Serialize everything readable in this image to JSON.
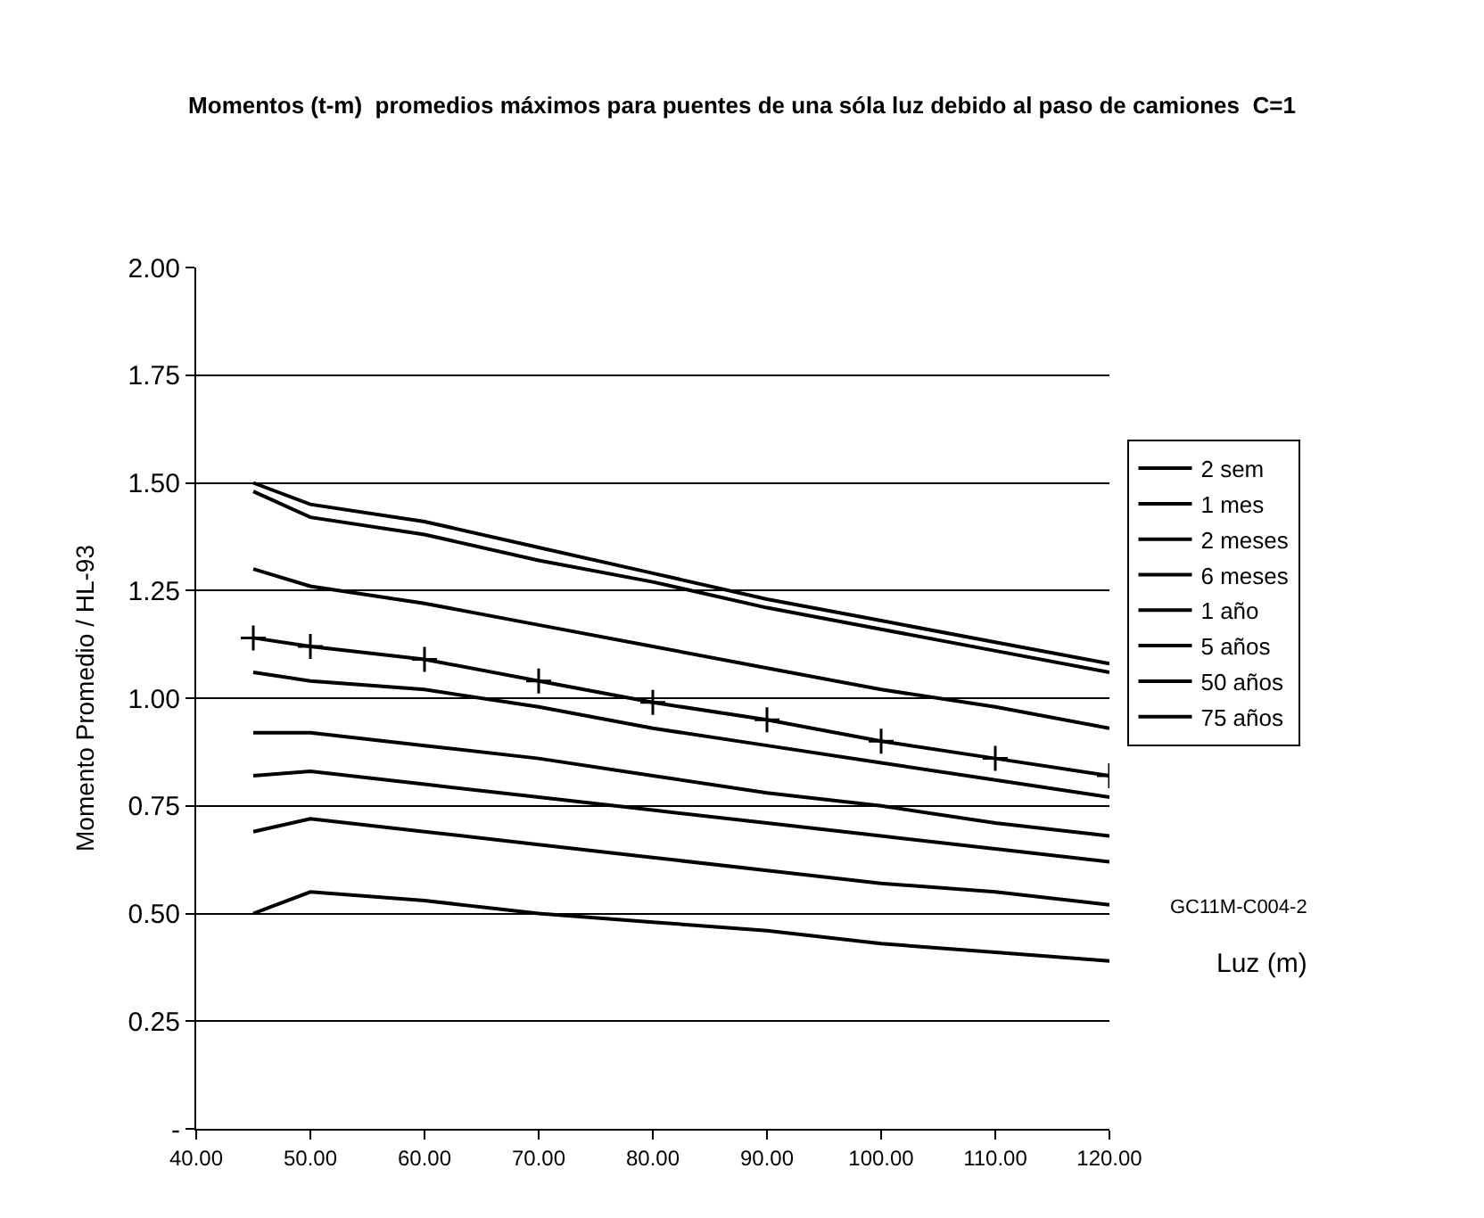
{
  "chart_data": {
    "type": "line",
    "title": "Momentos (t-m)  promedios máximos para puentes de una sóla luz debido al paso de camiones  C=1",
    "xlabel": "Luz (m)",
    "ylabel": "Momento Promedio / HL-93",
    "annotations": [
      "GC11M-C004-2"
    ],
    "x": [
      45,
      50,
      60,
      70,
      80,
      90,
      100,
      110,
      120
    ],
    "series": [
      {
        "name": "2 sem",
        "color": "#000000",
        "values": [
          0.5,
          0.55,
          0.53,
          0.5,
          0.48,
          0.46,
          0.43,
          0.41,
          0.39
        ]
      },
      {
        "name": "1 mes",
        "color": "#000000",
        "values": [
          0.69,
          0.72,
          0.69,
          0.66,
          0.63,
          0.6,
          0.57,
          0.55,
          0.52
        ]
      },
      {
        "name": "2 meses",
        "color": "#000000",
        "values": [
          0.82,
          0.83,
          0.8,
          0.77,
          0.74,
          0.71,
          0.68,
          0.65,
          0.62
        ]
      },
      {
        "name": "6 meses",
        "color": "#000000",
        "values": [
          0.92,
          0.92,
          0.89,
          0.86,
          0.82,
          0.78,
          0.75,
          0.71,
          0.68
        ]
      },
      {
        "name": "1 año",
        "color": "#000000",
        "values": [
          1.06,
          1.04,
          1.02,
          0.98,
          0.93,
          0.89,
          0.85,
          0.81,
          0.77
        ]
      },
      {
        "name": "5 años",
        "color": "#000000",
        "values": [
          1.3,
          1.26,
          1.22,
          1.17,
          1.12,
          1.07,
          1.02,
          0.98,
          0.93
        ]
      },
      {
        "name": "50 años",
        "color": "#000000",
        "values": [
          1.48,
          1.42,
          1.38,
          1.32,
          1.27,
          1.21,
          1.16,
          1.11,
          1.06
        ]
      },
      {
        "name": "75 años",
        "color": "#000000",
        "values": [
          1.5,
          1.45,
          1.41,
          1.35,
          1.29,
          1.23,
          1.18,
          1.13,
          1.08
        ]
      },
      {
        "color": "#000000",
        "marker": "cross",
        "values": [
          1.14,
          1.12,
          1.09,
          1.04,
          0.99,
          0.95,
          0.9,
          0.86,
          0.82
        ]
      }
    ],
    "xlim": [
      40,
      120
    ],
    "xticks": [
      {
        "value": 40,
        "label": "40.00"
      },
      {
        "value": 50,
        "label": "50.00"
      },
      {
        "value": 60,
        "label": "60.00"
      },
      {
        "value": 70,
        "label": "70.00"
      },
      {
        "value": 80,
        "label": "80.00"
      },
      {
        "value": 90,
        "label": "90.00"
      },
      {
        "value": 100,
        "label": "100.00"
      },
      {
        "value": 110,
        "label": "110.00"
      },
      {
        "value": 120,
        "label": "120.00"
      }
    ],
    "ylim": [
      0,
      2
    ],
    "yticks": [
      {
        "value": 0,
        "label": "-"
      },
      {
        "value": 0.25,
        "label": "0.25"
      },
      {
        "value": 0.5,
        "label": "0.50"
      },
      {
        "value": 0.75,
        "label": "0.75"
      },
      {
        "value": 1,
        "label": "1.00"
      },
      {
        "value": 1.25,
        "label": "1.25"
      },
      {
        "value": 1.5,
        "label": "1.50"
      },
      {
        "value": 1.75,
        "label": "1.75"
      },
      {
        "value": 2,
        "label": "2.00"
      }
    ],
    "grid": "y",
    "legend": "right",
    "marker": "none",
    "line_style": "solid"
  }
}
